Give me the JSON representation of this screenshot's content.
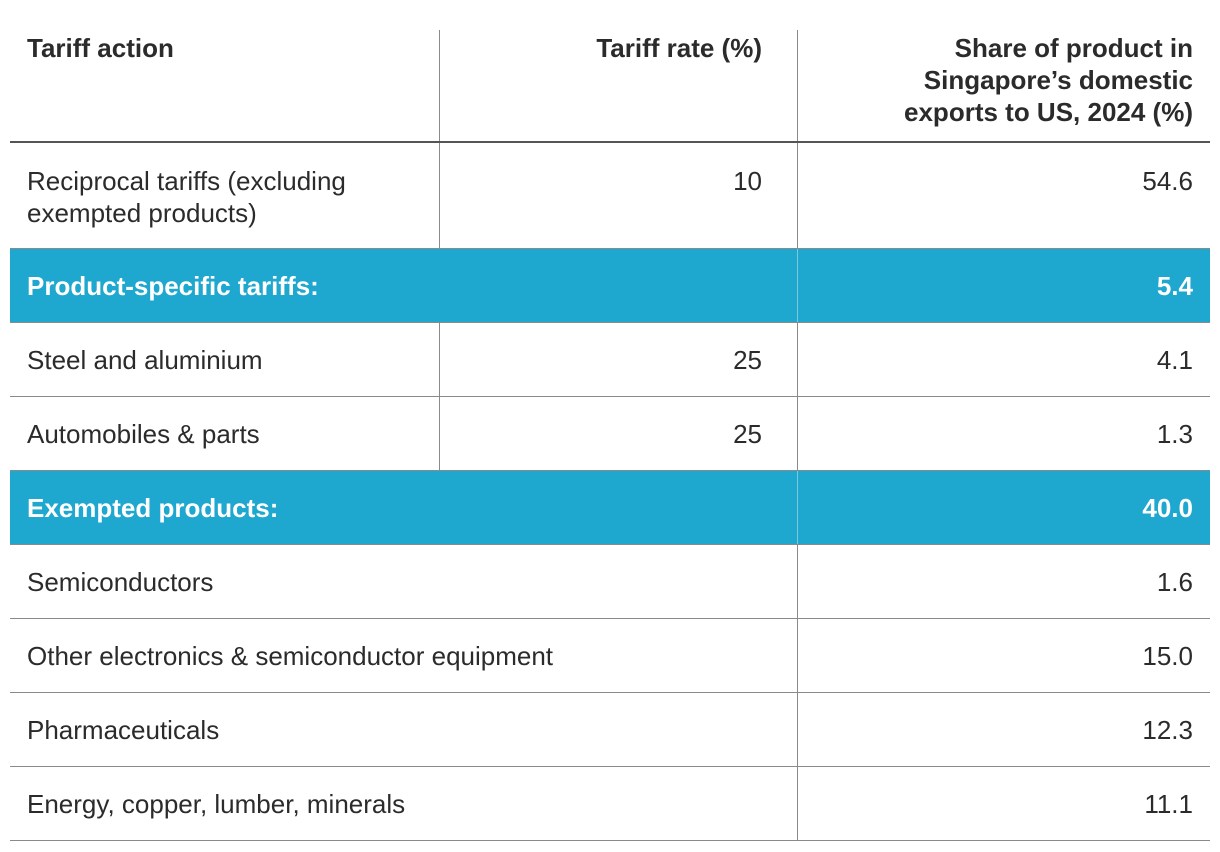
{
  "table": {
    "headers": {
      "action": "Tariff action",
      "rate": "Tariff rate (%)",
      "share_line1": "Share of product in",
      "share_line2": "Singapore’s domestic",
      "share_line3": "exports to US, 2024 (%)"
    },
    "reciprocal": {
      "label_line1": "Reciprocal tariffs (excluding",
      "label_line2": "exempted products)",
      "rate": "10",
      "share": "54.6"
    },
    "product_specific": {
      "label": "Product-specific tariffs:",
      "share": "5.4",
      "rows": [
        {
          "label": "Steel and aluminium",
          "rate": "25",
          "share": "4.1"
        },
        {
          "label": "Automobiles & parts",
          "rate": "25",
          "share": "1.3"
        }
      ]
    },
    "exempted": {
      "label": "Exempted products:",
      "share": "40.0",
      "rows": [
        {
          "label": "Semiconductors",
          "share": "1.6"
        },
        {
          "label": "Other electronics & semiconductor equipment",
          "share": "15.0"
        },
        {
          "label": "Pharmaceuticals",
          "share": "12.3"
        },
        {
          "label": "Energy, copper, lumber, minerals",
          "share": "11.1"
        }
      ]
    }
  },
  "colors": {
    "section_bg": "#1ea7cf",
    "text": "#2b2b2b"
  }
}
